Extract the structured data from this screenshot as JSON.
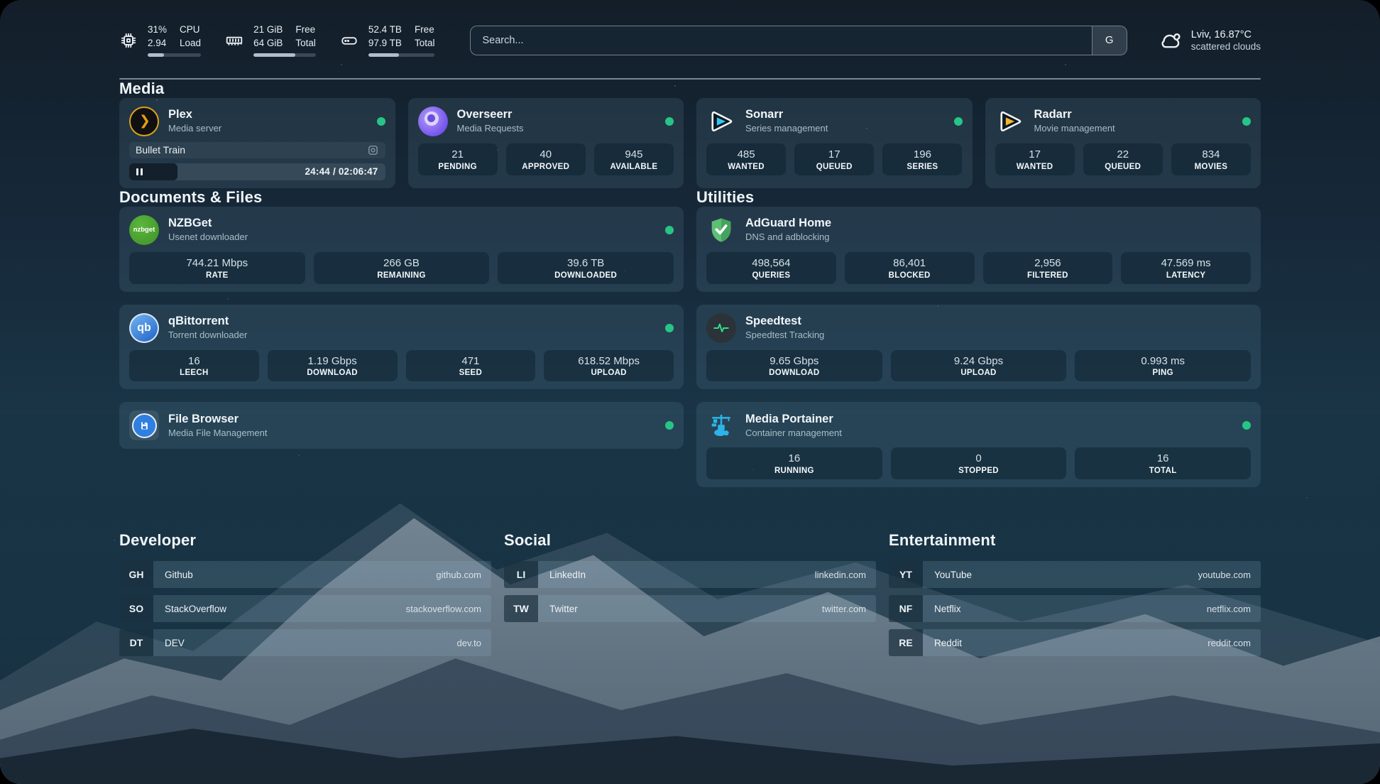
{
  "header": {
    "resources": [
      {
        "icon": "cpu-icon",
        "value_top": "31%",
        "value_bottom": "2.94",
        "label_top": "CPU",
        "label_bottom": "Load",
        "progress_pct": 31
      },
      {
        "icon": "memory-icon",
        "value_top": "21 GiB",
        "value_bottom": "64 GiB",
        "label_top": "Free",
        "label_bottom": "Total",
        "progress_pct": 67
      },
      {
        "icon": "disk-icon",
        "value_top": "52.4 TB",
        "value_bottom": "97.9 TB",
        "label_top": "Free",
        "label_bottom": "Total",
        "progress_pct": 46
      }
    ],
    "search": {
      "placeholder": "Search...",
      "button_label": "G"
    },
    "weather": {
      "location": "Lviv, 16.87°C",
      "condition": "scattered clouds"
    }
  },
  "media": {
    "title": "Media",
    "plex": {
      "title": "Plex",
      "subtitle": "Media server",
      "status": "online",
      "icon_glyph": "❯",
      "now_playing": {
        "title": "Bullet Train",
        "time": "24:44 / 02:06:47",
        "progress_pct": 19
      }
    },
    "overseerr": {
      "title": "Overseerr",
      "subtitle": "Media Requests",
      "status": "online",
      "stats": [
        {
          "value": "21",
          "label": "PENDING"
        },
        {
          "value": "40",
          "label": "APPROVED"
        },
        {
          "value": "945",
          "label": "AVAILABLE"
        }
      ]
    },
    "sonarr": {
      "title": "Sonarr",
      "subtitle": "Series management",
      "status": "online",
      "stats": [
        {
          "value": "485",
          "label": "WANTED"
        },
        {
          "value": "17",
          "label": "QUEUED"
        },
        {
          "value": "196",
          "label": "SERIES"
        }
      ]
    },
    "radarr": {
      "title": "Radarr",
      "subtitle": "Movie management",
      "status": "online",
      "stats": [
        {
          "value": "17",
          "label": "WANTED"
        },
        {
          "value": "22",
          "label": "QUEUED"
        },
        {
          "value": "834",
          "label": "MOVIES"
        }
      ]
    }
  },
  "documents": {
    "title": "Documents & Files",
    "nzbget": {
      "title": "NZBGet",
      "subtitle": "Usenet downloader",
      "status": "online",
      "icon_text": "nzbget",
      "stats": [
        {
          "value": "744.21 Mbps",
          "label": "RATE"
        },
        {
          "value": "266 GB",
          "label": "REMAINING"
        },
        {
          "value": "39.6 TB",
          "label": "DOWNLOADED"
        }
      ]
    },
    "qbittorrent": {
      "title": "qBittorrent",
      "subtitle": "Torrent downloader",
      "status": "online",
      "icon_text": "qb",
      "stats": [
        {
          "value": "16",
          "label": "LEECH"
        },
        {
          "value": "1.19 Gbps",
          "label": "DOWNLOAD"
        },
        {
          "value": "471",
          "label": "SEED"
        },
        {
          "value": "618.52 Mbps",
          "label": "UPLOAD"
        }
      ]
    },
    "filebrowser": {
      "title": "File Browser",
      "subtitle": "Media File Management",
      "status": "online"
    }
  },
  "utilities": {
    "title": "Utilities",
    "adguard": {
      "title": "AdGuard Home",
      "subtitle": "DNS and adblocking",
      "stats": [
        {
          "value": "498,564",
          "label": "QUERIES"
        },
        {
          "value": "86,401",
          "label": "BLOCKED"
        },
        {
          "value": "2,956",
          "label": "FILTERED"
        },
        {
          "value": "47.569 ms",
          "label": "LATENCY"
        }
      ]
    },
    "speedtest": {
      "title": "Speedtest",
      "subtitle": "Speedtest Tracking",
      "stats": [
        {
          "value": "9.65 Gbps",
          "label": "DOWNLOAD"
        },
        {
          "value": "9.24 Gbps",
          "label": "UPLOAD"
        },
        {
          "value": "0.993 ms",
          "label": "PING"
        }
      ]
    },
    "portainer": {
      "title": "Media Portainer",
      "subtitle": "Container management",
      "status": "online",
      "stats": [
        {
          "value": "16",
          "label": "RUNNING"
        },
        {
          "value": "0",
          "label": "STOPPED"
        },
        {
          "value": "16",
          "label": "TOTAL"
        }
      ]
    }
  },
  "bookmarks": {
    "developer": {
      "title": "Developer",
      "items": [
        {
          "abbr": "GH",
          "name": "Github",
          "url": "github.com"
        },
        {
          "abbr": "SO",
          "name": "StackOverflow",
          "url": "stackoverflow.com"
        },
        {
          "abbr": "DT",
          "name": "DEV",
          "url": "dev.to"
        }
      ]
    },
    "social": {
      "title": "Social",
      "items": [
        {
          "abbr": "LI",
          "name": "LinkedIn",
          "url": "linkedin.com"
        },
        {
          "abbr": "TW",
          "name": "Twitter",
          "url": "twitter.com"
        }
      ]
    },
    "entertainment": {
      "title": "Entertainment",
      "items": [
        {
          "abbr": "YT",
          "name": "YouTube",
          "url": "youtube.com"
        },
        {
          "abbr": "NF",
          "name": "Netflix",
          "url": "netflix.com"
        },
        {
          "abbr": "RE",
          "name": "Reddit",
          "url": "reddit.com"
        }
      ]
    }
  },
  "colors": {
    "status_online": "#27c585",
    "accent_plex": "#e5a00d",
    "accent_sonarr": "#33c6f4",
    "accent_radarr": "#f7b42c"
  }
}
